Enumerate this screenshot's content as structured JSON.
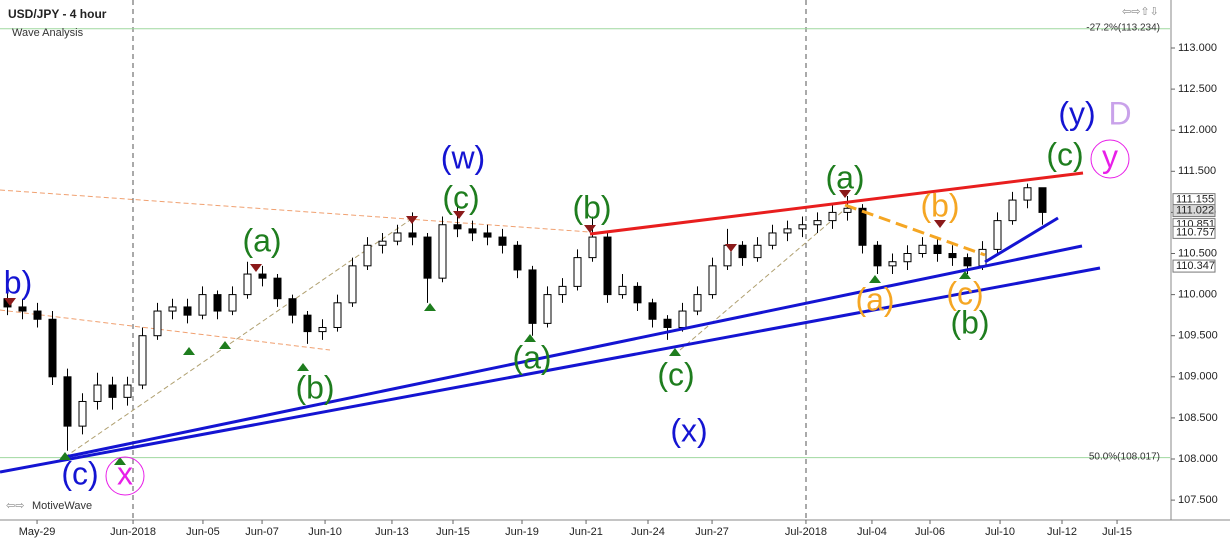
{
  "chart_data": {
    "type": "candlestick",
    "title": "USD/JPY - 4 hour",
    "subtitle": "Wave Analysis",
    "watermark": "MotiveWave",
    "up_color": "#ffffff",
    "down_color": "#000000",
    "ylim": [
      107.258,
      113.584
    ],
    "xlim": [
      0,
      78
    ],
    "yticks": [
      {
        "value": 107.5,
        "label": "107.500"
      },
      {
        "value": 108,
        "label": "108.000"
      },
      {
        "value": 108.5,
        "label": "108.500"
      },
      {
        "value": 109,
        "label": "109.000"
      },
      {
        "value": 109.5,
        "label": "109.500"
      },
      {
        "value": 110,
        "label": "110.000"
      },
      {
        "value": 110.5,
        "label": "110.500"
      },
      {
        "value": 111,
        "label": "111.000"
      },
      {
        "value": 111.5,
        "label": "111.500"
      },
      {
        "value": 112,
        "label": "112.000"
      },
      {
        "value": 112.5,
        "label": "112.500"
      },
      {
        "value": 113,
        "label": "113.000"
      }
    ],
    "xticks": [
      {
        "value": 2.47,
        "label": "May-29"
      },
      {
        "value": 8.87,
        "label": "Jun-2018"
      },
      {
        "value": 13.53,
        "label": "Jun-05"
      },
      {
        "value": 17.47,
        "label": "Jun-07"
      },
      {
        "value": 21.67,
        "label": "Jun-10"
      },
      {
        "value": 26.13,
        "label": "Jun-13"
      },
      {
        "value": 30.2,
        "label": "Jun-15"
      },
      {
        "value": 34.8,
        "label": "Jun-19"
      },
      {
        "value": 39.07,
        "label": "Jun-21"
      },
      {
        "value": 43.2,
        "label": "Jun-24"
      },
      {
        "value": 47.47,
        "label": "Jun-27"
      },
      {
        "value": 53.73,
        "label": "Jul-2018"
      },
      {
        "value": 58.13,
        "label": "Jul-04"
      },
      {
        "value": 62,
        "label": "Jul-06"
      },
      {
        "value": 66.67,
        "label": "Jul-10"
      },
      {
        "value": 70.8,
        "label": "Jul-12"
      },
      {
        "value": 74.47,
        "label": "Jul-15"
      }
    ],
    "open": [
      109.95,
      109.85,
      109.8,
      109.7,
      109.0,
      108.4,
      108.7,
      108.9,
      108.75,
      108.9,
      109.5,
      109.8,
      109.85,
      109.75,
      110.0,
      109.8,
      110.0,
      110.25,
      110.2,
      109.95,
      109.75,
      109.55,
      109.6,
      109.9,
      110.35,
      110.6,
      110.65,
      110.75,
      110.7,
      110.2,
      110.85,
      110.8,
      110.75,
      110.7,
      110.6,
      110.3,
      109.65,
      110.0,
      110.1,
      110.45,
      110.7,
      110.0,
      110.1,
      109.9,
      109.7,
      109.6,
      109.8,
      110.0,
      110.35,
      110.6,
      110.45,
      110.6,
      110.75,
      110.8,
      110.85,
      110.9,
      111.0,
      111.05,
      110.6,
      110.35,
      110.4,
      110.5,
      110.6,
      110.5,
      110.45,
      110.35,
      110.55,
      110.9,
      111.15,
      111.3
    ],
    "high": [
      110.05,
      109.95,
      109.9,
      109.8,
      109.1,
      108.8,
      109.05,
      109.0,
      109.0,
      109.6,
      109.9,
      109.95,
      109.95,
      110.1,
      110.05,
      110.1,
      110.4,
      110.35,
      110.25,
      110.0,
      109.8,
      109.7,
      110.0,
      110.45,
      110.7,
      110.75,
      110.85,
      111.0,
      110.75,
      110.95,
      111.1,
      110.9,
      110.85,
      110.8,
      110.65,
      110.35,
      110.1,
      110.2,
      110.55,
      110.95,
      110.75,
      110.25,
      110.15,
      109.95,
      109.75,
      109.9,
      110.1,
      110.45,
      110.8,
      110.65,
      110.7,
      110.85,
      110.9,
      110.95,
      111.0,
      111.1,
      111.2,
      111.1,
      110.65,
      110.5,
      110.6,
      110.7,
      110.7,
      110.6,
      110.5,
      110.65,
      111.0,
      111.25,
      111.35,
      111.3
    ],
    "low": [
      109.75,
      109.7,
      109.6,
      108.9,
      108.1,
      108.3,
      108.6,
      108.6,
      108.65,
      108.85,
      109.45,
      109.7,
      109.65,
      109.7,
      109.7,
      109.75,
      109.95,
      110.1,
      109.85,
      109.65,
      109.4,
      109.45,
      109.55,
      109.85,
      110.3,
      110.5,
      110.6,
      110.6,
      109.9,
      110.15,
      110.7,
      110.65,
      110.6,
      110.5,
      110.2,
      109.5,
      109.6,
      109.9,
      110.05,
      110.4,
      109.9,
      109.95,
      109.8,
      109.6,
      109.45,
      109.55,
      109.75,
      109.95,
      110.3,
      110.35,
      110.4,
      110.55,
      110.65,
      110.7,
      110.75,
      110.8,
      110.9,
      110.5,
      110.25,
      110.25,
      110.3,
      110.45,
      110.4,
      110.35,
      110.25,
      110.3,
      110.5,
      110.85,
      111.05,
      110.85
    ],
    "close": [
      109.85,
      109.8,
      109.7,
      109.0,
      108.4,
      108.7,
      108.9,
      108.75,
      108.9,
      109.5,
      109.8,
      109.85,
      109.75,
      110.0,
      109.8,
      110.0,
      110.25,
      110.2,
      109.95,
      109.75,
      109.55,
      109.6,
      109.9,
      110.35,
      110.6,
      110.65,
      110.75,
      110.7,
      110.2,
      110.85,
      110.8,
      110.75,
      110.7,
      110.6,
      110.3,
      109.65,
      110.0,
      110.1,
      110.45,
      110.7,
      110.0,
      110.1,
      109.9,
      109.7,
      109.6,
      109.8,
      110.0,
      110.35,
      110.6,
      110.45,
      110.6,
      110.75,
      110.8,
      110.85,
      110.9,
      111.0,
      111.05,
      110.6,
      110.35,
      110.4,
      110.5,
      110.6,
      110.5,
      110.45,
      110.35,
      110.55,
      110.9,
      111.15,
      111.3,
      111.0
    ],
    "price_tags": [
      {
        "value": 111.155,
        "label": "111.155"
      },
      {
        "value": 111.022,
        "label": "111.022"
      },
      {
        "value": 110.851,
        "label": "110.851"
      },
      {
        "value": 110.757,
        "label": "110.757"
      },
      {
        "value": 110.347,
        "label": "110.347"
      }
    ],
    "levels": [
      {
        "value": 113.234,
        "label": "-27.2%(113.234)"
      },
      {
        "value": 108.017,
        "label": "50.0%(108.017)"
      }
    ],
    "wave_labels": [
      {
        "text": "b)",
        "color": "#1414d2"
      },
      {
        "text": "(w)",
        "color": "#1414d2"
      },
      {
        "text": "(c)",
        "color": "#1e7d1e"
      },
      {
        "text": "(a)",
        "color": "#1e7d1e"
      },
      {
        "text": "(b)",
        "color": "#1e7d1e"
      },
      {
        "text": "(b)",
        "color": "#1e7d1e"
      },
      {
        "text": "(a)",
        "color": "#1e7d1e"
      },
      {
        "text": "(c)",
        "color": "#1e7d1e"
      },
      {
        "text": "(x)",
        "color": "#1414d2"
      },
      {
        "text": "(a)",
        "color": "#1e7d1e"
      },
      {
        "text": "(b)",
        "color": "#f5a623"
      },
      {
        "text": "(a)",
        "color": "#f5a623"
      },
      {
        "text": "(c)",
        "color": "#f5a623"
      },
      {
        "text": "(b)",
        "color": "#1e7d1e"
      },
      {
        "text": "(c)",
        "color": "#1e7d1e"
      },
      {
        "text": "(y)",
        "color": "#1414d2"
      },
      {
        "text": "D",
        "color": "#c9a2ea"
      },
      {
        "text": "y",
        "color": "#e81ee8"
      },
      {
        "text": "(c)",
        "color": "#1414d2"
      },
      {
        "text": "x",
        "color": "#e81ee8"
      }
    ]
  }
}
